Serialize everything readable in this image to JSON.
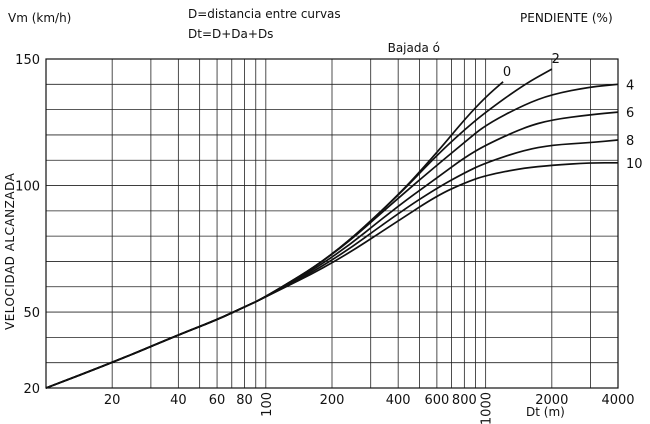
{
  "chart_data": {
    "type": "line",
    "ylabel_top": "Vm (km/h)",
    "ylabel_side": "VELOCIDAD ALCANZADA",
    "xlabel": "Dt (m)",
    "legend_title": "PENDIENTE (%)",
    "legend_prefix": "Bajada ó",
    "notes": [
      "D=distancia entre curvas",
      "Dt=D+Da+Ds"
    ],
    "x_scale": "log",
    "xlim": [
      10,
      4000
    ],
    "ylim": [
      20,
      150
    ],
    "grid": true,
    "x_ticks": [
      {
        "value": 20,
        "label": "20",
        "rotated": false
      },
      {
        "value": 40,
        "label": "40",
        "rotated": false
      },
      {
        "value": 60,
        "label": "60",
        "rotated": false
      },
      {
        "value": 80,
        "label": "80",
        "rotated": false
      },
      {
        "value": 100,
        "label": "100",
        "rotated": true
      },
      {
        "value": 200,
        "label": "200",
        "rotated": false
      },
      {
        "value": 400,
        "label": "400",
        "rotated": false
      },
      {
        "value": 600,
        "label": "600",
        "rotated": false
      },
      {
        "value": 800,
        "label": "800",
        "rotated": false
      },
      {
        "value": 1000,
        "label": "1000",
        "rotated": true
      },
      {
        "value": 2000,
        "label": "2000",
        "rotated": false
      },
      {
        "value": 4000,
        "label": "4000",
        "rotated": false
      }
    ],
    "y_ticks": [
      {
        "value": 20,
        "label": "20"
      },
      {
        "value": 50,
        "label": "50"
      },
      {
        "value": 100,
        "label": "100"
      },
      {
        "value": 150,
        "label": "150"
      }
    ],
    "series": [
      {
        "name": "0",
        "label_side": "top",
        "x": [
          10,
          20,
          40,
          60,
          80,
          100,
          200,
          400,
          600,
          800,
          1000,
          1200
        ],
        "y": [
          20,
          30,
          41,
          47,
          52,
          56,
          72,
          96,
          113,
          126,
          135,
          141
        ]
      },
      {
        "name": "2",
        "label_side": "top",
        "x": [
          10,
          20,
          40,
          60,
          80,
          100,
          200,
          400,
          600,
          800,
          1000,
          1500,
          2000
        ],
        "y": [
          20,
          30,
          41,
          47,
          52,
          56,
          72,
          96,
          112,
          122,
          129,
          140,
          146
        ]
      },
      {
        "name": "4",
        "label_side": "right",
        "x": [
          10,
          20,
          40,
          60,
          80,
          100,
          200,
          400,
          600,
          800,
          1000,
          1500,
          2000,
          3000,
          4000
        ],
        "y": [
          20,
          30,
          41,
          47,
          52,
          56,
          72,
          95,
          108,
          117,
          124,
          132,
          136,
          139,
          140
        ]
      },
      {
        "name": "6",
        "label_side": "right",
        "x": [
          10,
          20,
          40,
          60,
          80,
          100,
          200,
          400,
          600,
          800,
          1000,
          1500,
          2000,
          3000,
          4000
        ],
        "y": [
          20,
          30,
          41,
          47,
          52,
          56,
          71,
          92,
          103,
          111,
          116,
          123,
          126,
          128,
          129
        ]
      },
      {
        "name": "8",
        "label_side": "right",
        "x": [
          10,
          20,
          40,
          60,
          80,
          100,
          200,
          400,
          600,
          800,
          1000,
          1500,
          2000,
          3000,
          4000
        ],
        "y": [
          20,
          30,
          41,
          47,
          52,
          56,
          70,
          89,
          99,
          105,
          109,
          114,
          116,
          117,
          118
        ]
      },
      {
        "name": "10",
        "label_side": "right",
        "x": [
          10,
          20,
          40,
          60,
          80,
          100,
          200,
          400,
          600,
          800,
          1000,
          1500,
          2000,
          3000,
          4000
        ],
        "y": [
          20,
          30,
          41,
          47,
          52,
          56,
          69,
          86,
          96,
          101,
          104,
          107,
          108,
          109,
          109
        ]
      }
    ]
  }
}
